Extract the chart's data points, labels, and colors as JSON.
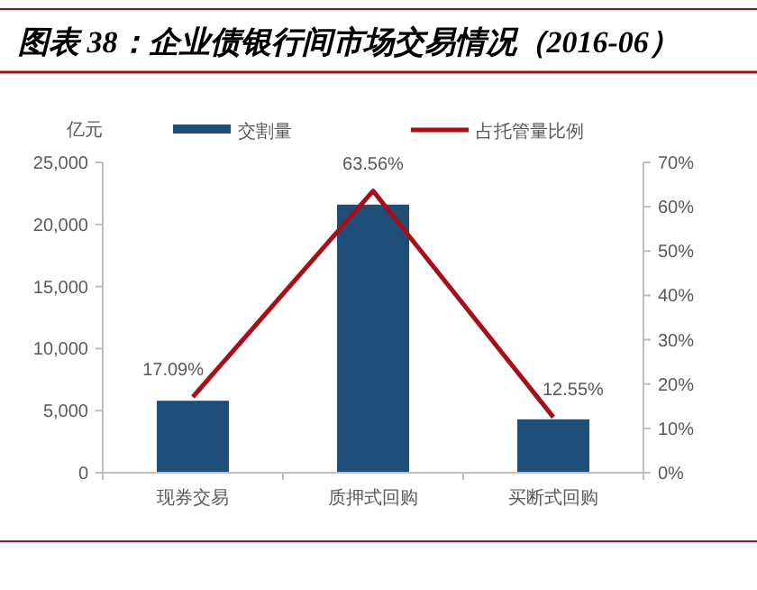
{
  "chart_data": {
    "type": "bar",
    "title": "图表 38：企业债银行间市场交易情况（2016-06）",
    "ylabel": "亿元",
    "categories": [
      "现券交易",
      "质押式回购",
      "买断式回购"
    ],
    "series": [
      {
        "name": "交割量",
        "color": "#1f4e79",
        "values": [
          5800,
          21600,
          4300
        ]
      },
      {
        "name": "占托管量比例",
        "type": "line",
        "axis": "y2",
        "color": "#a50f1a",
        "values": [
          17.09,
          63.56,
          12.55
        ],
        "value_labels": [
          "17.09%",
          "63.56%",
          "12.55%"
        ]
      }
    ],
    "ylim": [
      0,
      25000
    ],
    "yticks": [
      {
        "value": 0,
        "label": "0"
      },
      {
        "value": 5000,
        "label": "5,000"
      },
      {
        "value": 10000,
        "label": "10,000"
      },
      {
        "value": 15000,
        "label": "15,000"
      },
      {
        "value": 20000,
        "label": "20,000"
      },
      {
        "value": 25000,
        "label": "25,000"
      }
    ],
    "y2lim": [
      0,
      70
    ],
    "y2ticks": [
      {
        "value": 0,
        "label": "0%"
      },
      {
        "value": 10,
        "label": "10%"
      },
      {
        "value": 20,
        "label": "20%"
      },
      {
        "value": 30,
        "label": "30%"
      },
      {
        "value": 40,
        "label": "40%"
      },
      {
        "value": 50,
        "label": "50%"
      },
      {
        "value": 60,
        "label": "60%"
      },
      {
        "value": 70,
        "label": "70%"
      }
    ],
    "legend": "top",
    "grid": false
  }
}
